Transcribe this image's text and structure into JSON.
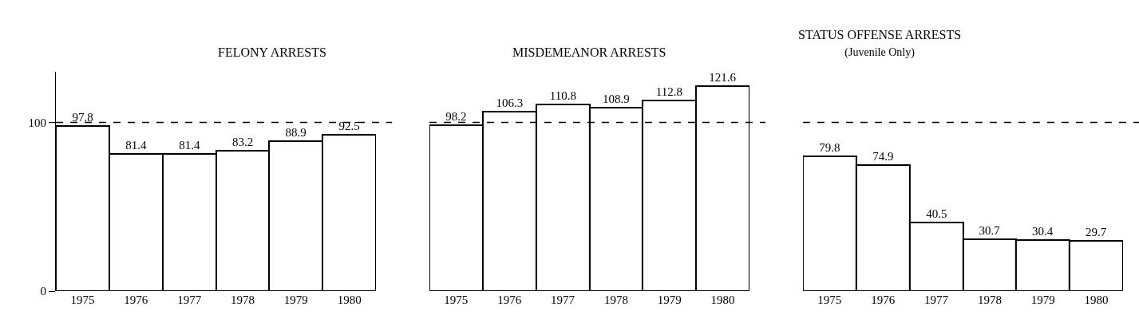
{
  "chart_data": [
    {
      "type": "bar",
      "title": "FELONY ARRESTS",
      "categories": [
        "1975",
        "1976",
        "1977",
        "1978",
        "1979",
        "1980"
      ],
      "values": [
        97.8,
        81.4,
        81.4,
        83.2,
        88.9,
        92.5
      ],
      "color": "#ffffff",
      "data_labels": true,
      "ylim": [
        0,
        130
      ],
      "yticks": [
        0,
        100
      ],
      "ref_lines": [
        {
          "axis": "y",
          "value": 100,
          "line_style": "dashed",
          "color": "#000000"
        }
      ]
    },
    {
      "type": "bar",
      "title": "MISDEMEANOR ARRESTS",
      "categories": [
        "1975",
        "1976",
        "1977",
        "1978",
        "1979",
        "1980"
      ],
      "values": [
        98.2,
        106.3,
        110.8,
        108.9,
        112.8,
        121.6
      ],
      "color": "#ffffff",
      "data_labels": true,
      "tick_labels": "x",
      "ref_lines": [
        {
          "axis": "y",
          "value": 100,
          "line_style": "dashed",
          "color": "#000000"
        }
      ]
    },
    {
      "type": "bar",
      "title": "STATUS OFFENSE ARRESTS",
      "subtitle": "(Juvenile Only)",
      "categories": [
        "1975",
        "1976",
        "1977",
        "1978",
        "1979",
        "1980"
      ],
      "values": [
        79.8,
        74.9,
        40.5,
        30.7,
        30.4,
        29.7
      ],
      "color": "#ffffff",
      "data_labels": true,
      "tick_labels": "x",
      "ref_lines": [
        {
          "axis": "y",
          "value": 100,
          "line_style": "dashed",
          "color": "#000000"
        }
      ]
    }
  ]
}
